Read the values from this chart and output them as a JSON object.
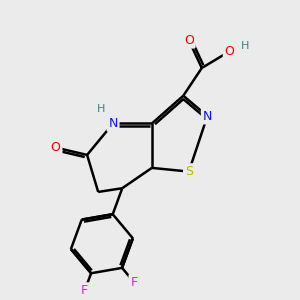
{
  "bg_color": "#ebebeb",
  "atom_colors": {
    "C": "#000000",
    "N": "#1010ee",
    "O": "#ee0000",
    "S": "#b8b800",
    "F": "#e020e0",
    "H": "#408080"
  },
  "bond_color": "#000000",
  "bond_width": 1.8
}
